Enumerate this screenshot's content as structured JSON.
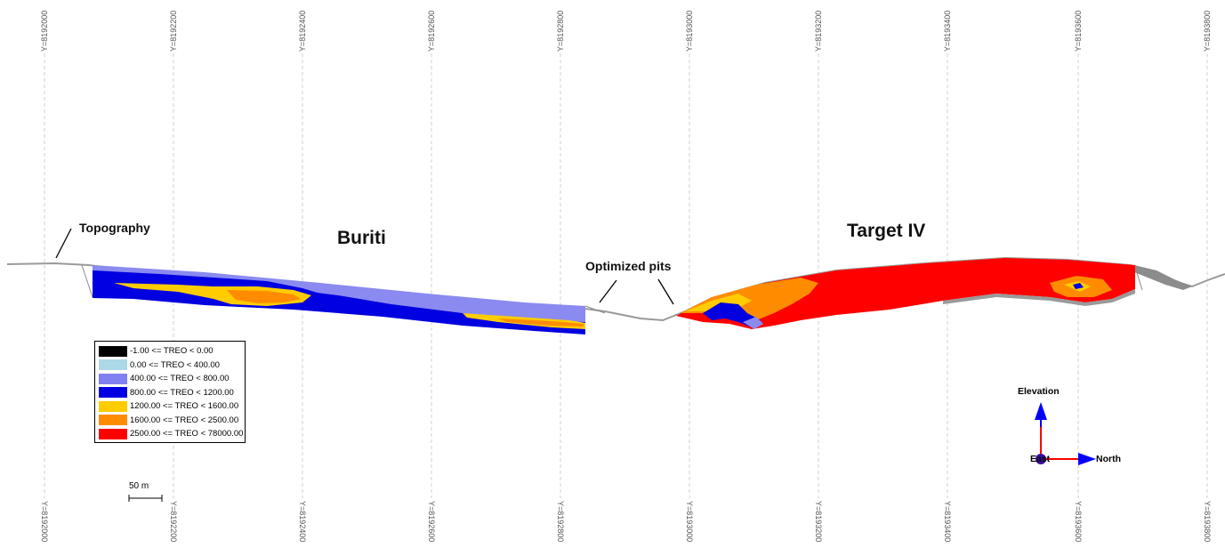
{
  "grid_lines": {
    "top_labels": [
      "Y=8192000",
      "Y=8192200",
      "Y=8192400",
      "Y=8192600",
      "Y=8192800",
      "Y=8193000",
      "Y=8193200",
      "Y=8193400",
      "Y=8193600",
      "Y=8193800"
    ],
    "bottom_labels": [
      "Y=8192000",
      "Y=8192200",
      "Y=8192400",
      "Y=8192600",
      "Y=8192800",
      "Y=8193000",
      "Y=8193200",
      "Y=8193400",
      "Y=8193600",
      "Y=8193800"
    ]
  },
  "annotations": {
    "topography": "Topography",
    "buriti": "Buriti",
    "target_iv": "Target IV",
    "optimized_pits": "Optimized pits"
  },
  "legend": {
    "items": [
      {
        "label": "-1.00 <= TREO < 0.00",
        "color": "#000000"
      },
      {
        "label": "0.00 <= TREO < 400.00",
        "color": "#add8e6"
      },
      {
        "label": "400.00 <= TREO < 800.00",
        "color": "#8080f0"
      },
      {
        "label": "800.00 <= TREO < 1200.00",
        "color": "#0000e0"
      },
      {
        "label": "1200.00 <= TREO < 1600.00",
        "color": "#ffcc00"
      },
      {
        "label": "1600.00 <= TREO < 2500.00",
        "color": "#ff8c00"
      },
      {
        "label": "2500.00 <= TREO < 78000.00",
        "color": "#ff0000"
      }
    ]
  },
  "scale_bar": {
    "label": "50 m"
  },
  "orientation": {
    "vertical_label": "Elevation",
    "origin_label": "East",
    "horizontal_label": "North",
    "vertical_color": "#0000ff",
    "horizontal_color": "#0000ff",
    "origin_color": "#3a0ca3"
  }
}
